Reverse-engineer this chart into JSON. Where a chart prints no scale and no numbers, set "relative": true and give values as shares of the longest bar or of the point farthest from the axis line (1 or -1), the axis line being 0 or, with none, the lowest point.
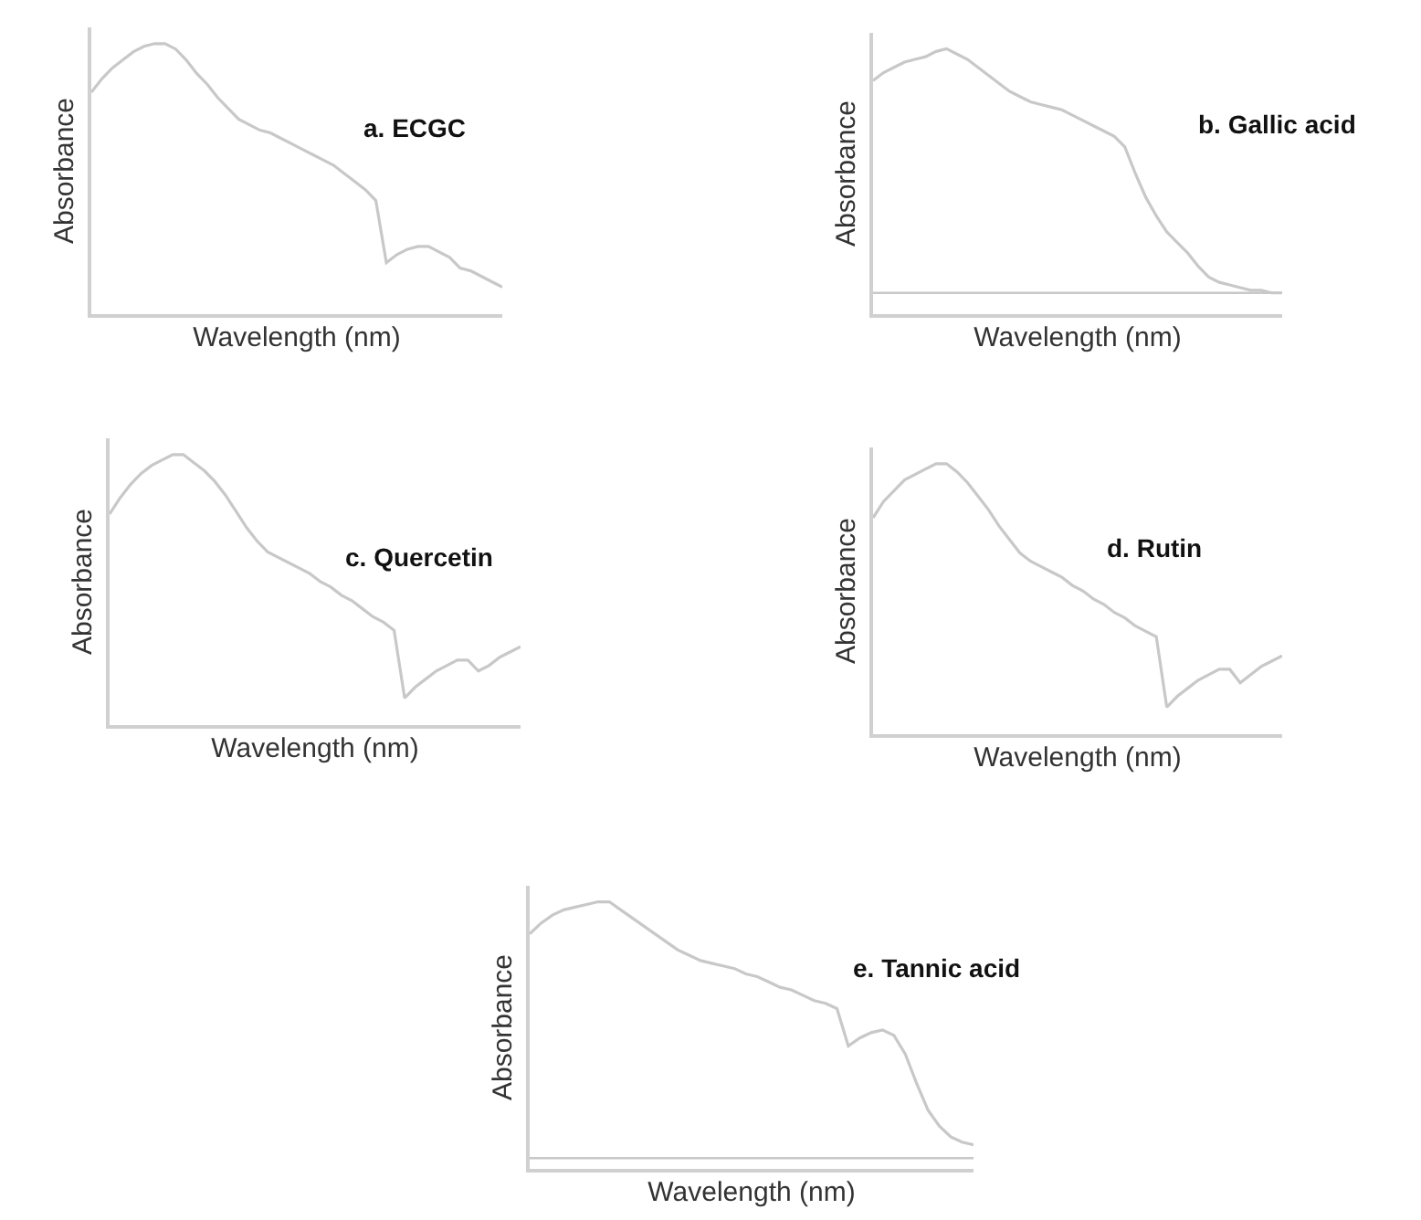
{
  "chart_data": [
    {
      "type": "line",
      "relative": true,
      "title": "a. ECGC",
      "xlabel": "Wavelength (nm)",
      "ylabel": "Absorbance",
      "tick_labels": false,
      "categories": [
        null,
        null,
        null,
        null,
        null,
        null,
        null,
        null,
        null,
        null,
        null,
        null,
        null,
        null,
        null,
        null,
        null,
        null,
        null,
        null,
        null,
        null,
        null,
        null,
        null,
        null,
        null,
        null,
        null,
        null,
        null,
        null,
        null,
        null,
        null,
        null,
        null,
        null,
        null,
        null
      ],
      "series": [
        {
          "color": "#c8c8c8",
          "values": [
            0.82,
            0.87,
            0.91,
            0.94,
            0.97,
            0.99,
            1.0,
            1.0,
            0.98,
            0.94,
            0.89,
            0.85,
            0.8,
            0.76,
            0.72,
            0.7,
            0.68,
            0.67,
            0.65,
            0.63,
            0.61,
            0.59,
            0.57,
            0.55,
            0.52,
            0.49,
            0.46,
            0.42,
            0.19,
            0.22,
            0.24,
            0.25,
            0.25,
            0.23,
            0.21,
            0.17,
            0.16,
            0.14,
            0.12,
            0.1
          ]
        }
      ]
    },
    {
      "type": "line",
      "relative": true,
      "title": "b. Gallic acid",
      "xlabel": "Wavelength (nm)",
      "ylabel": "Absorbance",
      "tick_labels": false,
      "categories": [
        null,
        null,
        null,
        null,
        null,
        null,
        null,
        null,
        null,
        null,
        null,
        null,
        null,
        null,
        null,
        null,
        null,
        null,
        null,
        null,
        null,
        null,
        null,
        null,
        null,
        null,
        null,
        null,
        null,
        null,
        null,
        null,
        null,
        null,
        null,
        null,
        null,
        null,
        null,
        null
      ],
      "series": [
        {
          "color": "#c8c8c8",
          "values": [
            0.88,
            0.91,
            0.93,
            0.95,
            0.96,
            0.97,
            0.99,
            1.0,
            0.98,
            0.96,
            0.93,
            0.9,
            0.87,
            0.84,
            0.82,
            0.8,
            0.79,
            0.78,
            0.77,
            0.75,
            0.73,
            0.71,
            0.69,
            0.67,
            0.63,
            0.53,
            0.44,
            0.37,
            0.31,
            0.27,
            0.23,
            0.18,
            0.14,
            0.12,
            0.11,
            0.1,
            0.09,
            0.09,
            0.08,
            0.08
          ]
        }
      ],
      "ref_lines": [
        {
          "axis": "y",
          "value": 0.08,
          "color": "#c8c8c8"
        }
      ]
    },
    {
      "type": "line",
      "relative": true,
      "title": "c. Quercetin",
      "xlabel": "Wavelength (nm)",
      "ylabel": "Absorbance",
      "tick_labels": false,
      "categories": [
        null,
        null,
        null,
        null,
        null,
        null,
        null,
        null,
        null,
        null,
        null,
        null,
        null,
        null,
        null,
        null,
        null,
        null,
        null,
        null,
        null,
        null,
        null,
        null,
        null,
        null,
        null,
        null,
        null,
        null,
        null,
        null,
        null,
        null,
        null,
        null,
        null,
        null,
        null,
        null
      ],
      "series": [
        {
          "color": "#c8c8c8",
          "values": [
            0.78,
            0.84,
            0.89,
            0.93,
            0.96,
            0.98,
            1.0,
            1.0,
            0.97,
            0.94,
            0.9,
            0.85,
            0.79,
            0.73,
            0.68,
            0.64,
            0.62,
            0.6,
            0.58,
            0.56,
            0.53,
            0.51,
            0.48,
            0.46,
            0.43,
            0.4,
            0.38,
            0.35,
            0.1,
            0.14,
            0.17,
            0.2,
            0.22,
            0.24,
            0.24,
            0.2,
            0.22,
            0.25,
            0.27,
            0.29
          ]
        }
      ]
    },
    {
      "type": "line",
      "relative": true,
      "title": "d. Rutin",
      "xlabel": "Wavelength (nm)",
      "ylabel": "Absorbance",
      "tick_labels": false,
      "categories": [
        null,
        null,
        null,
        null,
        null,
        null,
        null,
        null,
        null,
        null,
        null,
        null,
        null,
        null,
        null,
        null,
        null,
        null,
        null,
        null,
        null,
        null,
        null,
        null,
        null,
        null,
        null,
        null,
        null,
        null,
        null,
        null,
        null,
        null,
        null,
        null,
        null,
        null,
        null,
        null
      ],
      "series": [
        {
          "color": "#c8c8c8",
          "values": [
            0.8,
            0.86,
            0.9,
            0.94,
            0.96,
            0.98,
            1.0,
            1.0,
            0.97,
            0.93,
            0.88,
            0.83,
            0.77,
            0.72,
            0.67,
            0.64,
            0.62,
            0.6,
            0.58,
            0.55,
            0.53,
            0.5,
            0.48,
            0.45,
            0.43,
            0.4,
            0.38,
            0.36,
            0.1,
            0.14,
            0.17,
            0.2,
            0.22,
            0.24,
            0.24,
            0.19,
            0.22,
            0.25,
            0.27,
            0.29
          ]
        }
      ]
    },
    {
      "type": "line",
      "relative": true,
      "title": "e. Tannic acid",
      "xlabel": "Wavelength (nm)",
      "ylabel": "Absorbance",
      "tick_labels": false,
      "categories": [
        null,
        null,
        null,
        null,
        null,
        null,
        null,
        null,
        null,
        null,
        null,
        null,
        null,
        null,
        null,
        null,
        null,
        null,
        null,
        null,
        null,
        null,
        null,
        null,
        null,
        null,
        null,
        null,
        null,
        null,
        null,
        null,
        null,
        null,
        null,
        null,
        null,
        null,
        null,
        null
      ],
      "series": [
        {
          "color": "#c8c8c8",
          "values": [
            0.88,
            0.92,
            0.95,
            0.97,
            0.98,
            0.99,
            1.0,
            1.0,
            0.97,
            0.94,
            0.91,
            0.88,
            0.85,
            0.82,
            0.8,
            0.78,
            0.77,
            0.76,
            0.75,
            0.73,
            0.72,
            0.7,
            0.68,
            0.67,
            0.65,
            0.63,
            0.62,
            0.6,
            0.46,
            0.49,
            0.51,
            0.52,
            0.5,
            0.43,
            0.32,
            0.22,
            0.16,
            0.12,
            0.1,
            0.09
          ]
        }
      ],
      "ref_lines": [
        {
          "axis": "y",
          "value": 0.04,
          "color": "#c8c8c8"
        }
      ]
    }
  ]
}
